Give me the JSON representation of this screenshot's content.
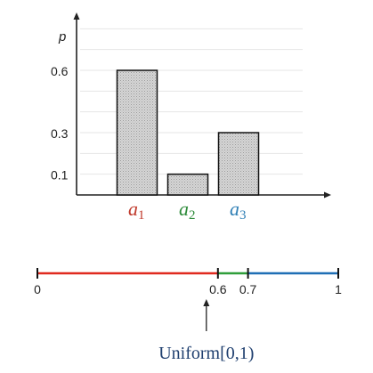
{
  "chart_data": [
    {
      "type": "bar",
      "ylabel": "p",
      "ylim": [
        0,
        0.8
      ],
      "yticks": [
        {
          "value": 0.1,
          "label": "0.1"
        },
        {
          "value": 0.3,
          "label": "0.3"
        },
        {
          "value": 0.6,
          "label": "0.6"
        }
      ],
      "grid": true,
      "categories": [
        {
          "base": "a",
          "sub": "1",
          "color": "#c0392b"
        },
        {
          "base": "a",
          "sub": "2",
          "color": "#2e8b3a"
        },
        {
          "base": "a",
          "sub": "3",
          "color": "#2f7fb5"
        }
      ],
      "values": [
        0.6,
        0.1,
        0.3
      ],
      "bar_fill": "#cfcfcf"
    },
    {
      "type": "number-line",
      "range": [
        0,
        1
      ],
      "segments": [
        {
          "from": 0,
          "to": 0.6,
          "color": "#e02a1f"
        },
        {
          "from": 0.6,
          "to": 0.7,
          "color": "#2f9e3a"
        },
        {
          "from": 0.7,
          "to": 1,
          "color": "#1f6fb5"
        }
      ],
      "ticks": [
        {
          "value": 0,
          "label": "0"
        },
        {
          "value": 0.6,
          "label": "0.6"
        },
        {
          "value": 0.7,
          "label": "0.7"
        },
        {
          "value": 1,
          "label": "1"
        }
      ],
      "arrow_value": 0.6,
      "annotation": "Uniform[0,1)"
    }
  ]
}
